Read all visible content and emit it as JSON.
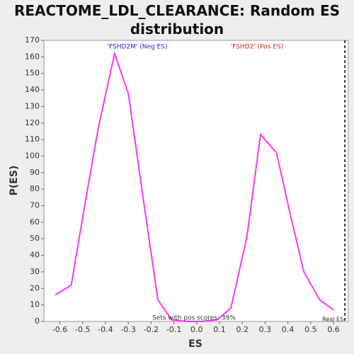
{
  "chart_data": {
    "type": "line",
    "title": "REACTOME_LDL_CLEARANCE: Random ES distribution",
    "x_label": "ES",
    "y_label": "P(ES)",
    "x": [
      -0.62,
      -0.55,
      -0.49,
      -0.43,
      -0.36,
      -0.3,
      -0.23,
      -0.17,
      -0.11,
      -0.04,
      0.02,
      0.09,
      0.15,
      0.22,
      0.28,
      0.35,
      0.41,
      0.47,
      0.54,
      0.6
    ],
    "series": [
      {
        "name": "P(ES)",
        "color": "#ff33ff",
        "values": [
          16,
          22,
          71,
          118,
          162,
          138,
          70,
          13,
          1,
          0,
          0,
          1,
          8,
          51,
          113,
          102,
          65,
          30,
          13,
          7
        ]
      }
    ],
    "xlim": [
      -0.67,
      0.665
    ],
    "ylim": [
      0,
      170
    ],
    "xticks": [
      -0.6,
      -0.5,
      -0.4,
      -0.3,
      -0.2,
      -0.1,
      {
        "value": 0,
        "label": "0.0"
      },
      0.1,
      0.2,
      0.3,
      0.4,
      0.5,
      0.6
    ],
    "yticks": [
      0,
      10,
      20,
      30,
      40,
      50,
      60,
      70,
      80,
      90,
      100,
      110,
      120,
      130,
      140,
      150,
      160,
      170
    ],
    "real_es": 0.65,
    "real_es_label": "Real ES",
    "neg_label": "'FSHD2M' (Neg ES)",
    "neg_color": "#2222dd",
    "pos_label": "'FSHD2' (Pos ES)",
    "pos_color": "#dd2222",
    "pos_note": "Sets with pos scores: 39%"
  }
}
